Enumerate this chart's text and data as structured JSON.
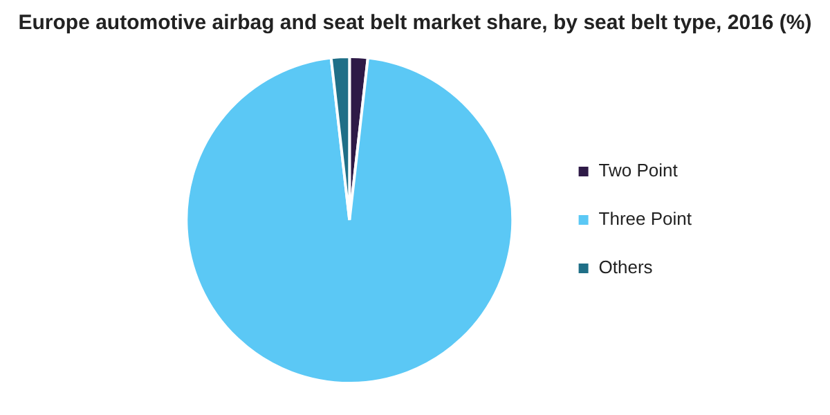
{
  "chart_data": {
    "type": "pie",
    "title": "Europe automotive airbag and seat belt market share, by seat belt type, 2016 (%)",
    "categories": [
      "Two Point",
      "Three Point",
      "Others"
    ],
    "values": [
      1.8,
      96.4,
      1.8
    ],
    "colors": [
      "#2e1a47",
      "#5bc8f5",
      "#1f6f87"
    ],
    "legend": "right"
  }
}
